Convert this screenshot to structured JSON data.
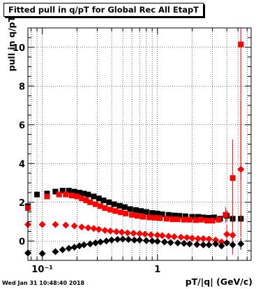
{
  "chart_data": {
    "type": "scatter",
    "title": "Fitted pull in q/pT for Global Rec All EtapT",
    "xlabel": "pT/|q| (GeV/c)",
    "ylabel": "pull in q/pT",
    "xscale": "log",
    "xlim": [
      0.075,
      6.5
    ],
    "ylim": [
      -1.0,
      11.0
    ],
    "grid": true,
    "y_tick_labels": [
      "0",
      "2",
      "4",
      "6",
      "8",
      "10"
    ],
    "x_tick_labels": [
      "10⁻¹",
      "1"
    ],
    "series": [
      {
        "marker": "square",
        "color": "#000000",
        "x": [
          0.075,
          0.09,
          0.11,
          0.13,
          0.15,
          0.17,
          0.19,
          0.21,
          0.23,
          0.25,
          0.28,
          0.31,
          0.34,
          0.38,
          0.42,
          0.47,
          0.52,
          0.58,
          0.65,
          0.72,
          0.8,
          0.9,
          1.0,
          1.1,
          1.25,
          1.4,
          1.55,
          1.75,
          2.0,
          2.25,
          2.5,
          2.8,
          3.1,
          3.5,
          4.0,
          4.5,
          5.3
        ],
        "y": [
          1.8,
          2.4,
          2.45,
          2.55,
          2.6,
          2.6,
          2.55,
          2.5,
          2.45,
          2.4,
          2.3,
          2.2,
          2.1,
          2.0,
          1.9,
          1.82,
          1.75,
          1.65,
          1.6,
          1.55,
          1.5,
          1.45,
          1.42,
          1.38,
          1.35,
          1.32,
          1.3,
          1.28,
          1.25,
          1.25,
          1.22,
          1.2,
          1.22,
          1.15,
          1.3,
          1.15,
          1.15
        ],
        "err": [
          0.2,
          0.08,
          0.06,
          0.05,
          0.05,
          0.05,
          0.05,
          0.05,
          0.05,
          0.05,
          0.05,
          0.05,
          0.05,
          0.05,
          0.05,
          0.05,
          0.05,
          0.05,
          0.05,
          0.05,
          0.05,
          0.05,
          0.05,
          0.05,
          0.05,
          0.05,
          0.05,
          0.05,
          0.06,
          0.06,
          0.07,
          0.08,
          0.1,
          0.12,
          0.3,
          0.2,
          0.2
        ]
      },
      {
        "marker": "square",
        "color": "#ff0000",
        "x": [
          0.075,
          0.11,
          0.14,
          0.16,
          0.18,
          0.2,
          0.22,
          0.24,
          0.26,
          0.29,
          0.32,
          0.35,
          0.39,
          0.43,
          0.48,
          0.53,
          0.6,
          0.67,
          0.75,
          0.85,
          0.95,
          1.05,
          1.2,
          1.35,
          1.5,
          1.7,
          1.9,
          2.15,
          2.4,
          2.7,
          3.0,
          3.4,
          3.9,
          4.5,
          5.3
        ],
        "y": [
          1.7,
          2.3,
          2.4,
          2.4,
          2.35,
          2.3,
          2.2,
          2.1,
          2.0,
          1.9,
          1.8,
          1.7,
          1.62,
          1.55,
          1.48,
          1.42,
          1.35,
          1.3,
          1.25,
          1.22,
          1.2,
          1.18,
          1.15,
          1.12,
          1.12,
          1.1,
          1.1,
          1.08,
          1.1,
          1.05,
          1.05,
          1.1,
          1.35,
          3.25,
          10.15
        ],
        "err": [
          0.2,
          0.06,
          0.05,
          0.05,
          0.05,
          0.05,
          0.05,
          0.05,
          0.05,
          0.05,
          0.05,
          0.05,
          0.05,
          0.05,
          0.05,
          0.05,
          0.05,
          0.05,
          0.05,
          0.05,
          0.05,
          0.05,
          0.05,
          0.05,
          0.05,
          0.05,
          0.05,
          0.05,
          0.06,
          0.07,
          0.08,
          0.1,
          0.4,
          2.0,
          7.0
        ]
      },
      {
        "marker": "diamond",
        "color": "#ff0000",
        "x": [
          0.075,
          0.1,
          0.13,
          0.16,
          0.19,
          0.22,
          0.25,
          0.28,
          0.31,
          0.35,
          0.39,
          0.44,
          0.49,
          0.55,
          0.62,
          0.7,
          0.78,
          0.88,
          1.0,
          1.1,
          1.25,
          1.4,
          1.6,
          1.8,
          2.0,
          2.25,
          2.5,
          2.8,
          3.2,
          3.6,
          4.0,
          4.5,
          5.3
        ],
        "y": [
          0.85,
          0.85,
          0.85,
          0.82,
          0.78,
          0.72,
          0.68,
          0.65,
          0.6,
          0.55,
          0.52,
          0.48,
          0.45,
          0.42,
          0.4,
          0.38,
          0.35,
          0.32,
          0.3,
          0.28,
          0.25,
          0.22,
          0.2,
          0.18,
          0.15,
          0.12,
          0.12,
          0.1,
          0.05,
          -0.05,
          0.35,
          0.3,
          3.7
        ],
        "err": [
          0.05,
          0.04,
          0.04,
          0.04,
          0.04,
          0.04,
          0.04,
          0.04,
          0.04,
          0.04,
          0.04,
          0.04,
          0.04,
          0.04,
          0.04,
          0.04,
          0.04,
          0.04,
          0.04,
          0.04,
          0.04,
          0.04,
          0.04,
          0.04,
          0.05,
          0.05,
          0.05,
          0.06,
          0.08,
          0.1,
          0.5,
          1.0,
          3.5
        ]
      },
      {
        "marker": "diamond",
        "color": "#000000",
        "x": [
          0.075,
          0.1,
          0.13,
          0.15,
          0.17,
          0.19,
          0.21,
          0.23,
          0.26,
          0.29,
          0.32,
          0.36,
          0.4,
          0.45,
          0.5,
          0.56,
          0.63,
          0.7,
          0.8,
          0.9,
          1.0,
          1.15,
          1.3,
          1.5,
          1.7,
          1.9,
          2.2,
          2.5,
          2.8,
          3.2,
          3.6,
          4.0,
          4.5,
          5.3
        ],
        "y": [
          -0.62,
          -0.65,
          -0.55,
          -0.45,
          -0.38,
          -0.32,
          -0.25,
          -0.2,
          -0.15,
          -0.1,
          -0.05,
          0.0,
          0.05,
          0.08,
          0.1,
          0.08,
          0.05,
          0.05,
          0.02,
          0.0,
          -0.02,
          -0.05,
          -0.08,
          -0.1,
          -0.12,
          -0.15,
          -0.18,
          -0.2,
          -0.2,
          -0.15,
          -0.25,
          -0.1,
          -0.2,
          -0.15
        ],
        "err": [
          0.05,
          0.04,
          0.04,
          0.04,
          0.04,
          0.04,
          0.04,
          0.04,
          0.04,
          0.04,
          0.04,
          0.04,
          0.04,
          0.04,
          0.04,
          0.04,
          0.04,
          0.04,
          0.04,
          0.04,
          0.04,
          0.04,
          0.04,
          0.04,
          0.05,
          0.05,
          0.05,
          0.06,
          0.07,
          0.08,
          0.1,
          0.12,
          0.2,
          0.3
        ]
      }
    ]
  },
  "footer": {
    "date": "Wed Jan 31 10:48:40 2018"
  }
}
